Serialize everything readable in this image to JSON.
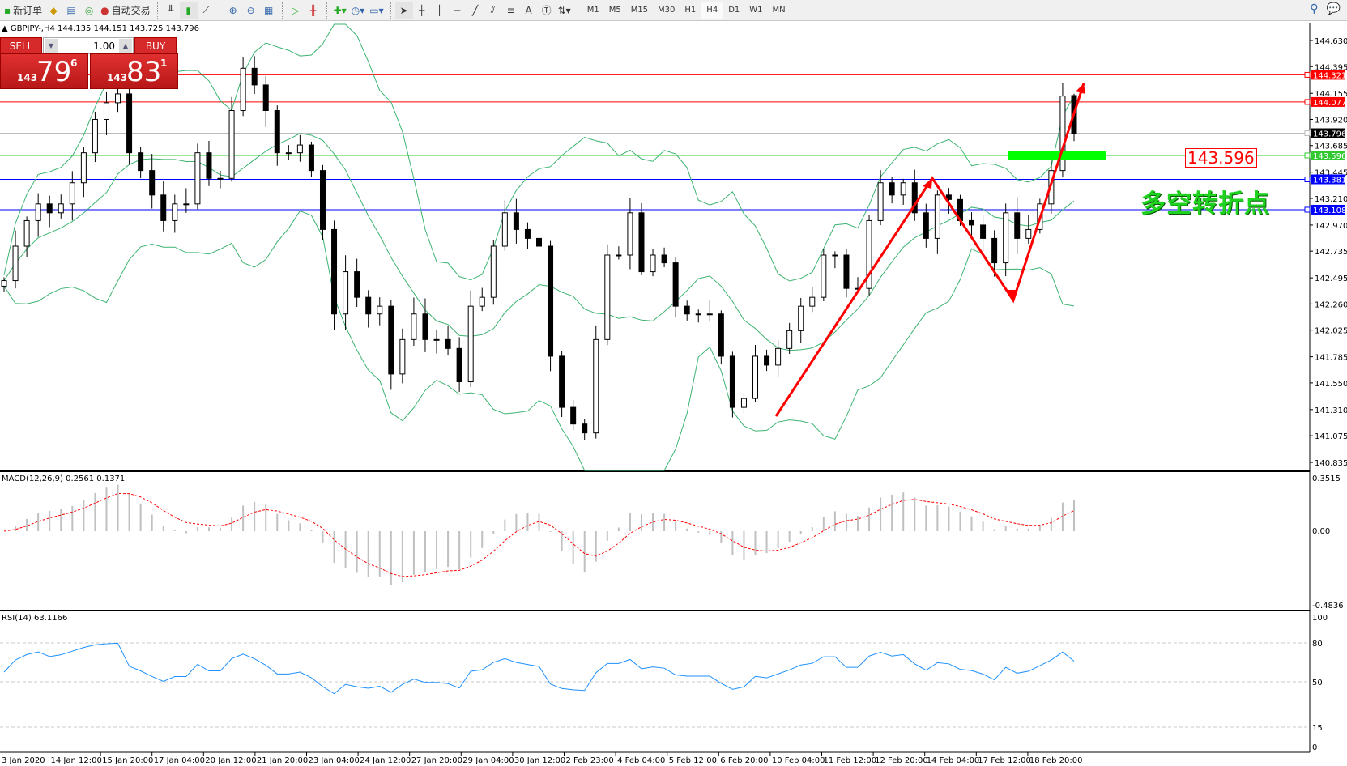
{
  "toolbar": {
    "new_order": "新订单",
    "auto_trading": "自动交易",
    "timeframes": [
      "M1",
      "M5",
      "M15",
      "M30",
      "H1",
      "H4",
      "D1",
      "W1",
      "MN"
    ],
    "active_timeframe": "H4",
    "tool_text_label": "A"
  },
  "chart": {
    "symbol_line": "GBPJPY-,H4  144.135 144.151 143.725 143.796",
    "trade_panel": {
      "sell_label": "SELL",
      "buy_label": "BUY",
      "lots": "1.00",
      "sell_price": {
        "prefix": "143",
        "main": "79",
        "sup": "6"
      },
      "buy_price": {
        "prefix": "143",
        "main": "83",
        "sup": "1"
      }
    },
    "annotation_price": "143.596",
    "annotation_text": "多空转折点",
    "colors": {
      "bull_candle": "#ffffff",
      "bear_candle": "#000000",
      "bands": "#3cb371",
      "arrow": "#ff0000",
      "macd_signal": "#ff0000",
      "rsi": "#1e90ff",
      "zone": "#00ff00"
    }
  },
  "chart_data": [
    {
      "type": "candlestick",
      "title": "GBPJPY-,H4",
      "last_candle": {
        "open": 144.135,
        "high": 144.151,
        "low": 143.725,
        "close": 143.796
      },
      "close": [
        142.47,
        142.78,
        143.01,
        143.16,
        143.08,
        143.16,
        143.35,
        143.62,
        143.92,
        144.07,
        144.15,
        143.62,
        143.46,
        143.24,
        143.01,
        143.16,
        143.16,
        143.62,
        143.39,
        143.39,
        144.0,
        144.38,
        144.23,
        144.0,
        143.62,
        143.62,
        143.69,
        143.46,
        142.93,
        142.17,
        142.55,
        142.32,
        142.17,
        142.24,
        141.63,
        141.94,
        142.17,
        141.94,
        141.94,
        141.86,
        141.56,
        142.24,
        142.32,
        142.78,
        143.08,
        142.93,
        142.85,
        142.78,
        141.79,
        141.33,
        141.18,
        141.1,
        141.94,
        142.7,
        142.7,
        143.08,
        142.55,
        142.7,
        142.63,
        142.24,
        142.17,
        142.17,
        142.17,
        141.79,
        141.33,
        141.41,
        141.79,
        141.71,
        141.86,
        142.02,
        142.24,
        142.32,
        142.7,
        142.7,
        142.4,
        142.4,
        143.01,
        143.35,
        143.24,
        143.35,
        143.08,
        142.85,
        143.24,
        143.2,
        143.01,
        142.97,
        142.85,
        142.63,
        143.08,
        142.85,
        142.93,
        143.16,
        143.46,
        144.13,
        143.796
      ],
      "ylim": [
        140.835,
        144.63
      ],
      "y_ticks": [
        "144.630",
        "144.395",
        "144.155",
        "143.920",
        "143.685",
        "143.445",
        "143.210",
        "142.970",
        "142.735",
        "142.495",
        "142.260",
        "142.025",
        "141.785",
        "141.550",
        "141.310",
        "141.075",
        "140.835"
      ],
      "x_ticks": [
        "3 Jan 2020",
        "14 Jan 12:00",
        "15 Jan 20:00",
        "17 Jan 04:00",
        "20 Jan 12:00",
        "21 Jan 20:00",
        "23 Jan 04:00",
        "24 Jan 12:00",
        "27 Jan 20:00",
        "29 Jan 04:00",
        "30 Jan 12:00",
        "2 Feb 23:00",
        "4 Feb 04:00",
        "5 Feb 12:00",
        "6 Feb 20:00",
        "10 Feb 04:00",
        "11 Feb 12:00",
        "12 Feb 20:00",
        "14 Feb 04:00",
        "17 Feb 12:00",
        "18 Feb 20:00"
      ],
      "horizontal_lines": [
        {
          "price": 144.321,
          "label": "144.321",
          "color": "#ff0000"
        },
        {
          "price": 144.077,
          "label": "144.077",
          "color": "#ff0000"
        },
        {
          "price": 143.796,
          "label": "143.796",
          "color": "#000000"
        },
        {
          "price": 143.596,
          "label": "143.596",
          "color": "#32c832"
        },
        {
          "price": 143.381,
          "label": "143.381",
          "color": "#0000ff"
        },
        {
          "price": 143.108,
          "label": "143.108",
          "color": "#0000ff"
        }
      ],
      "indicator": "Bollinger Bands"
    },
    {
      "type": "bar",
      "title": "MACD(12,26,9) 0.2561 0.1371",
      "ylim": [
        -0.4836,
        0.3515
      ],
      "y_ticks": [
        "0.3515",
        "0.00",
        "-0.4836"
      ]
    },
    {
      "type": "line",
      "title": "RSI(14) 63.1166",
      "ylim": [
        0,
        100
      ],
      "y_ticks": [
        "100",
        "80",
        "50",
        "15",
        "0"
      ],
      "levels": [
        80,
        50,
        15
      ]
    }
  ]
}
